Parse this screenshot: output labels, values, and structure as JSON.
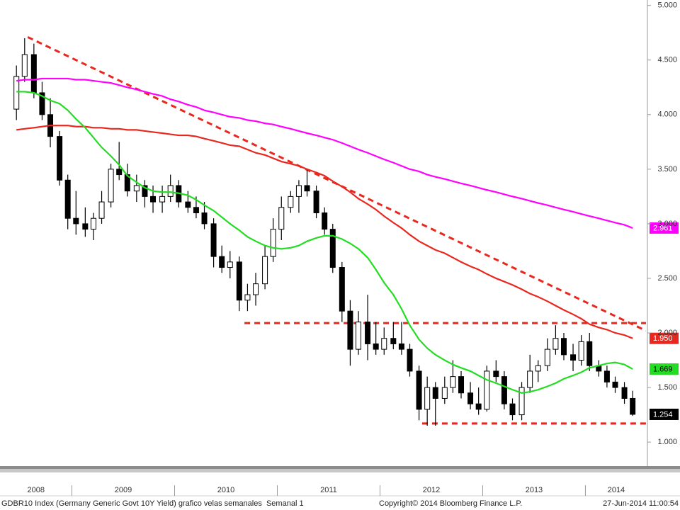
{
  "chart_data": {
    "type": "candlestick",
    "footer_left": "GDBR10 Index (Germany Generic Govt 10Y Yield) grafico velas semanales  Semanal 1",
    "footer_center": "Copyright© 2014 Bloomberg Finance L.P.",
    "footer_right": "27-Jun-2014 11:00:54",
    "x": [
      2008.46,
      2008.54,
      2008.63,
      2008.71,
      2008.79,
      2008.88,
      2008.96,
      2009.04,
      2009.13,
      2009.21,
      2009.29,
      2009.38,
      2009.46,
      2009.54,
      2009.63,
      2009.71,
      2009.79,
      2009.88,
      2009.96,
      2010.04,
      2010.13,
      2010.21,
      2010.29,
      2010.38,
      2010.46,
      2010.54,
      2010.63,
      2010.71,
      2010.79,
      2010.88,
      2010.96,
      2011.04,
      2011.13,
      2011.21,
      2011.29,
      2011.38,
      2011.46,
      2011.54,
      2011.63,
      2011.71,
      2011.79,
      2011.88,
      2011.96,
      2012.04,
      2012.13,
      2012.21,
      2012.29,
      2012.38,
      2012.46,
      2012.54,
      2012.63,
      2012.71,
      2012.79,
      2012.88,
      2012.96,
      2013.04,
      2013.13,
      2013.21,
      2013.29,
      2013.38,
      2013.46,
      2013.54,
      2013.63,
      2013.71,
      2013.79,
      2013.88,
      2013.96,
      2014.04,
      2014.13,
      2014.21,
      2014.29,
      2014.38,
      2014.46
    ],
    "open": [
      4.05,
      4.35,
      4.55,
      4.2,
      4.0,
      3.8,
      3.4,
      3.05,
      3.0,
      2.95,
      3.05,
      3.2,
      3.5,
      3.45,
      3.3,
      3.35,
      3.25,
      3.2,
      3.25,
      3.35,
      3.2,
      3.15,
      3.1,
      3.0,
      2.7,
      2.6,
      2.65,
      2.3,
      2.35,
      2.45,
      2.7,
      2.95,
      3.15,
      3.25,
      3.35,
      3.3,
      3.1,
      2.95,
      2.6,
      2.2,
      1.85,
      2.1,
      1.9,
      1.85,
      1.95,
      1.9,
      1.85,
      1.65,
      1.3,
      1.5,
      1.4,
      1.5,
      1.6,
      1.45,
      1.35,
      1.3,
      1.65,
      1.6,
      1.35,
      1.25,
      1.5,
      1.65,
      1.7,
      1.85,
      1.95,
      1.8,
      1.75,
      1.92,
      1.7,
      1.65,
      1.55,
      1.5,
      1.4
    ],
    "high": [
      4.45,
      4.7,
      4.65,
      4.3,
      4.15,
      3.85,
      3.45,
      3.3,
      3.15,
      3.1,
      3.3,
      3.55,
      3.75,
      3.55,
      3.45,
      3.4,
      3.35,
      3.35,
      3.45,
      3.4,
      3.3,
      3.25,
      3.2,
      3.05,
      2.8,
      2.75,
      2.7,
      2.45,
      2.55,
      2.8,
      3.05,
      3.25,
      3.3,
      3.4,
      3.5,
      3.35,
      3.15,
      3.0,
      2.65,
      2.3,
      2.2,
      2.35,
      2.1,
      2.05,
      2.1,
      2.1,
      1.9,
      1.7,
      1.6,
      1.55,
      1.6,
      1.75,
      1.65,
      1.55,
      1.5,
      1.7,
      1.75,
      1.65,
      1.4,
      1.55,
      1.8,
      1.75,
      1.95,
      2.07,
      2.0,
      1.9,
      1.98,
      2.0,
      1.75,
      1.7,
      1.6,
      1.55,
      1.47
    ],
    "low": [
      3.95,
      4.3,
      4.15,
      3.95,
      3.7,
      3.35,
      2.95,
      2.9,
      2.88,
      2.85,
      3.0,
      3.15,
      3.4,
      3.25,
      3.2,
      3.15,
      3.1,
      3.1,
      3.2,
      3.15,
      3.1,
      3.05,
      2.95,
      2.6,
      2.55,
      2.5,
      2.2,
      2.2,
      2.25,
      2.4,
      2.65,
      2.85,
      3.1,
      3.1,
      3.25,
      3.05,
      2.9,
      2.55,
      2.1,
      1.7,
      1.8,
      1.75,
      1.8,
      1.8,
      1.85,
      1.8,
      1.6,
      1.2,
      1.15,
      1.15,
      1.35,
      1.45,
      1.4,
      1.3,
      1.25,
      1.28,
      1.55,
      1.3,
      1.2,
      1.2,
      1.45,
      1.55,
      1.65,
      1.8,
      1.75,
      1.65,
      1.7,
      1.65,
      1.6,
      1.5,
      1.45,
      1.35,
      1.24
    ],
    "close": [
      4.35,
      4.55,
      4.2,
      4.0,
      3.8,
      3.4,
      3.05,
      3.0,
      2.95,
      3.05,
      3.2,
      3.5,
      3.45,
      3.3,
      3.35,
      3.25,
      3.2,
      3.25,
      3.35,
      3.2,
      3.15,
      3.1,
      3.0,
      2.7,
      2.6,
      2.65,
      2.3,
      2.35,
      2.45,
      2.7,
      2.95,
      3.15,
      3.25,
      3.35,
      3.3,
      3.1,
      2.95,
      2.6,
      2.2,
      1.85,
      2.1,
      1.9,
      1.85,
      1.95,
      1.9,
      1.85,
      1.65,
      1.3,
      1.5,
      1.4,
      1.5,
      1.6,
      1.45,
      1.35,
      1.3,
      1.65,
      1.6,
      1.35,
      1.25,
      1.5,
      1.65,
      1.7,
      1.85,
      1.95,
      1.8,
      1.75,
      1.92,
      1.7,
      1.65,
      1.55,
      1.5,
      1.4,
      1.254
    ],
    "candle_color": "#000000",
    "last_value": {
      "value": 1.254,
      "label": "1.254"
    },
    "series": [
      {
        "color": "#ff00ff",
        "last_value": {
          "value": 2.961,
          "label": "2.961"
        },
        "values": [
          4.31,
          4.32,
          4.32,
          4.33,
          4.33,
          4.33,
          4.33,
          4.32,
          4.32,
          4.31,
          4.3,
          4.29,
          4.27,
          4.25,
          4.23,
          4.21,
          4.19,
          4.17,
          4.14,
          4.12,
          4.09,
          4.07,
          4.04,
          4.02,
          4.0,
          3.98,
          3.97,
          3.95,
          3.94,
          3.92,
          3.91,
          3.89,
          3.87,
          3.85,
          3.83,
          3.81,
          3.79,
          3.77,
          3.74,
          3.71,
          3.68,
          3.65,
          3.62,
          3.59,
          3.56,
          3.53,
          3.5,
          3.48,
          3.45,
          3.43,
          3.41,
          3.39,
          3.37,
          3.35,
          3.33,
          3.31,
          3.29,
          3.27,
          3.25,
          3.23,
          3.21,
          3.19,
          3.17,
          3.15,
          3.13,
          3.11,
          3.09,
          3.07,
          3.05,
          3.03,
          3.01,
          2.99,
          2.961
        ]
      },
      {
        "color": "#e8281e",
        "last_value": {
          "value": 1.95,
          "label": "1.950"
        },
        "values": [
          3.86,
          3.87,
          3.88,
          3.89,
          3.9,
          3.9,
          3.9,
          3.89,
          3.89,
          3.88,
          3.88,
          3.87,
          3.87,
          3.86,
          3.86,
          3.85,
          3.84,
          3.83,
          3.82,
          3.81,
          3.81,
          3.8,
          3.78,
          3.76,
          3.74,
          3.72,
          3.71,
          3.68,
          3.65,
          3.63,
          3.6,
          3.57,
          3.55,
          3.53,
          3.5,
          3.47,
          3.44,
          3.39,
          3.34,
          3.29,
          3.23,
          3.18,
          3.13,
          3.07,
          3.01,
          2.96,
          2.9,
          2.84,
          2.8,
          2.76,
          2.73,
          2.69,
          2.65,
          2.61,
          2.58,
          2.54,
          2.5,
          2.47,
          2.44,
          2.4,
          2.36,
          2.33,
          2.29,
          2.25,
          2.21,
          2.17,
          2.13,
          2.08,
          2.05,
          2.03,
          2.0,
          1.98,
          1.95
        ]
      },
      {
        "color": "#22dd22",
        "last_value": {
          "value": 1.669,
          "label": "1.669"
        },
        "values": [
          4.21,
          4.21,
          4.2,
          4.17,
          4.13,
          4.1,
          4.04,
          3.96,
          3.88,
          3.79,
          3.7,
          3.62,
          3.54,
          3.44,
          3.38,
          3.33,
          3.3,
          3.29,
          3.29,
          3.28,
          3.26,
          3.22,
          3.17,
          3.12,
          3.06,
          3.0,
          2.94,
          2.88,
          2.84,
          2.8,
          2.78,
          2.77,
          2.78,
          2.8,
          2.84,
          2.87,
          2.89,
          2.89,
          2.86,
          2.82,
          2.77,
          2.69,
          2.58,
          2.46,
          2.35,
          2.22,
          2.07,
          1.94,
          1.86,
          1.8,
          1.75,
          1.71,
          1.68,
          1.65,
          1.61,
          1.57,
          1.54,
          1.51,
          1.48,
          1.45,
          1.46,
          1.48,
          1.51,
          1.54,
          1.58,
          1.61,
          1.64,
          1.68,
          1.7,
          1.72,
          1.73,
          1.71,
          1.669
        ]
      }
    ],
    "trendline_color": "#e8281e",
    "trendlines": [
      {
        "x": [
          2008.57,
          2014.59
        ],
        "y": [
          4.71,
          2.02
        ]
      },
      {
        "x": [
          2010.68,
          2014.59
        ],
        "y": [
          2.09,
          2.09
        ]
      },
      {
        "x": [
          2012.41,
          2014.59
        ],
        "y": [
          1.17,
          1.17
        ]
      }
    ],
    "xlim": [
      2008.3,
      2014.59
    ],
    "xticks": [
      2009,
      2010,
      2011,
      2012,
      2013,
      2014
    ],
    "xtick_labels": [
      {
        "value": 2008.65,
        "label": "2008"
      },
      {
        "value": 2009.5,
        "label": "2009"
      },
      {
        "value": 2010.5,
        "label": "2010"
      },
      {
        "value": 2011.5,
        "label": "2011"
      },
      {
        "value": 2012.5,
        "label": "2012"
      },
      {
        "value": 2013.5,
        "label": "2013"
      },
      {
        "value": 2014.3,
        "label": "2014"
      }
    ],
    "ylim": [
      0.78,
      5.05
    ],
    "yticks": [
      {
        "value": 1,
        "label": "1.000"
      },
      {
        "value": 1.5,
        "label": "1.500"
      },
      {
        "value": 2,
        "label": "2.000"
      },
      {
        "value": 2.5,
        "label": "2.500"
      },
      {
        "value": 3,
        "label": "3.000"
      },
      {
        "value": 3.5,
        "label": "3.500"
      },
      {
        "value": 4,
        "label": "4.000"
      },
      {
        "value": 4.5,
        "label": "4.500"
      },
      {
        "value": 5,
        "label": "5.000"
      }
    ],
    "grid": false
  }
}
